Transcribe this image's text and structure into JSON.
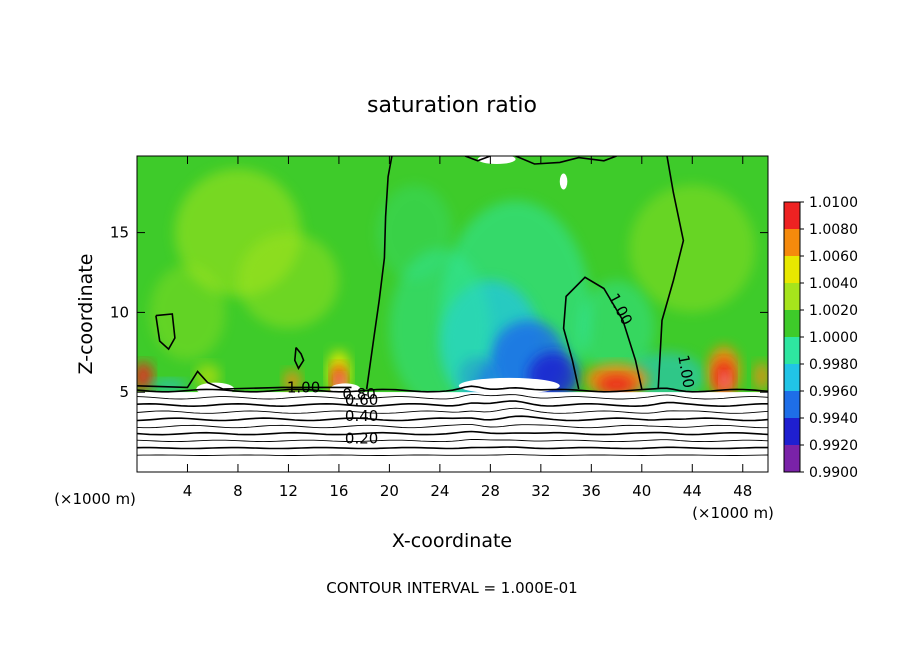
{
  "chart_data": {
    "type": "heatmap",
    "title": "saturation ratio",
    "xlabel": "X-coordinate",
    "ylabel": "Z-coordinate",
    "x_unit_left": "(×1000 m)",
    "x_unit_right": "(×1000 m)",
    "footer": "CONTOUR INTERVAL = 1.000E-01",
    "xlim": [
      0,
      50
    ],
    "ylim": [
      0,
      19.8
    ],
    "x_ticks": [
      4,
      8,
      12,
      16,
      20,
      24,
      28,
      32,
      36,
      40,
      44,
      48
    ],
    "x_tick_labels": [
      "4",
      "8",
      "12",
      "16",
      "20",
      "24",
      "28",
      "32",
      "36",
      "40",
      "44",
      "48"
    ],
    "y_ticks": [
      5,
      10,
      15
    ],
    "y_tick_labels": [
      "5",
      "10",
      "15"
    ],
    "colorbar": {
      "levels": [
        0.99,
        0.992,
        0.994,
        0.996,
        0.998,
        1.0,
        1.002,
        1.004,
        1.006,
        1.008,
        1.01
      ],
      "labels": [
        "0.9900",
        "0.9920",
        "0.9940",
        "0.9960",
        "0.9980",
        "1.0000",
        "1.0020",
        "1.0040",
        "1.0060",
        "1.0080",
        "1.0100"
      ],
      "colors": [
        "#7a22a8",
        "#1f1fd0",
        "#1e6ee8",
        "#21c4e6",
        "#2ee6a0",
        "#3ecb2a",
        "#a6e41c",
        "#e8e800",
        "#f58a0c",
        "#ee2222",
        "#f3a6a0"
      ]
    },
    "contour_labels": [
      "1.00",
      "1.00",
      "1.00",
      "0.80",
      "0.60",
      "0.40",
      "0.20"
    ],
    "lower_region_contours": [
      0.1,
      0.2,
      0.3,
      0.4,
      0.5,
      0.6,
      0.7,
      0.8,
      0.9,
      1.0
    ],
    "colored_region_zmin": 5
  }
}
